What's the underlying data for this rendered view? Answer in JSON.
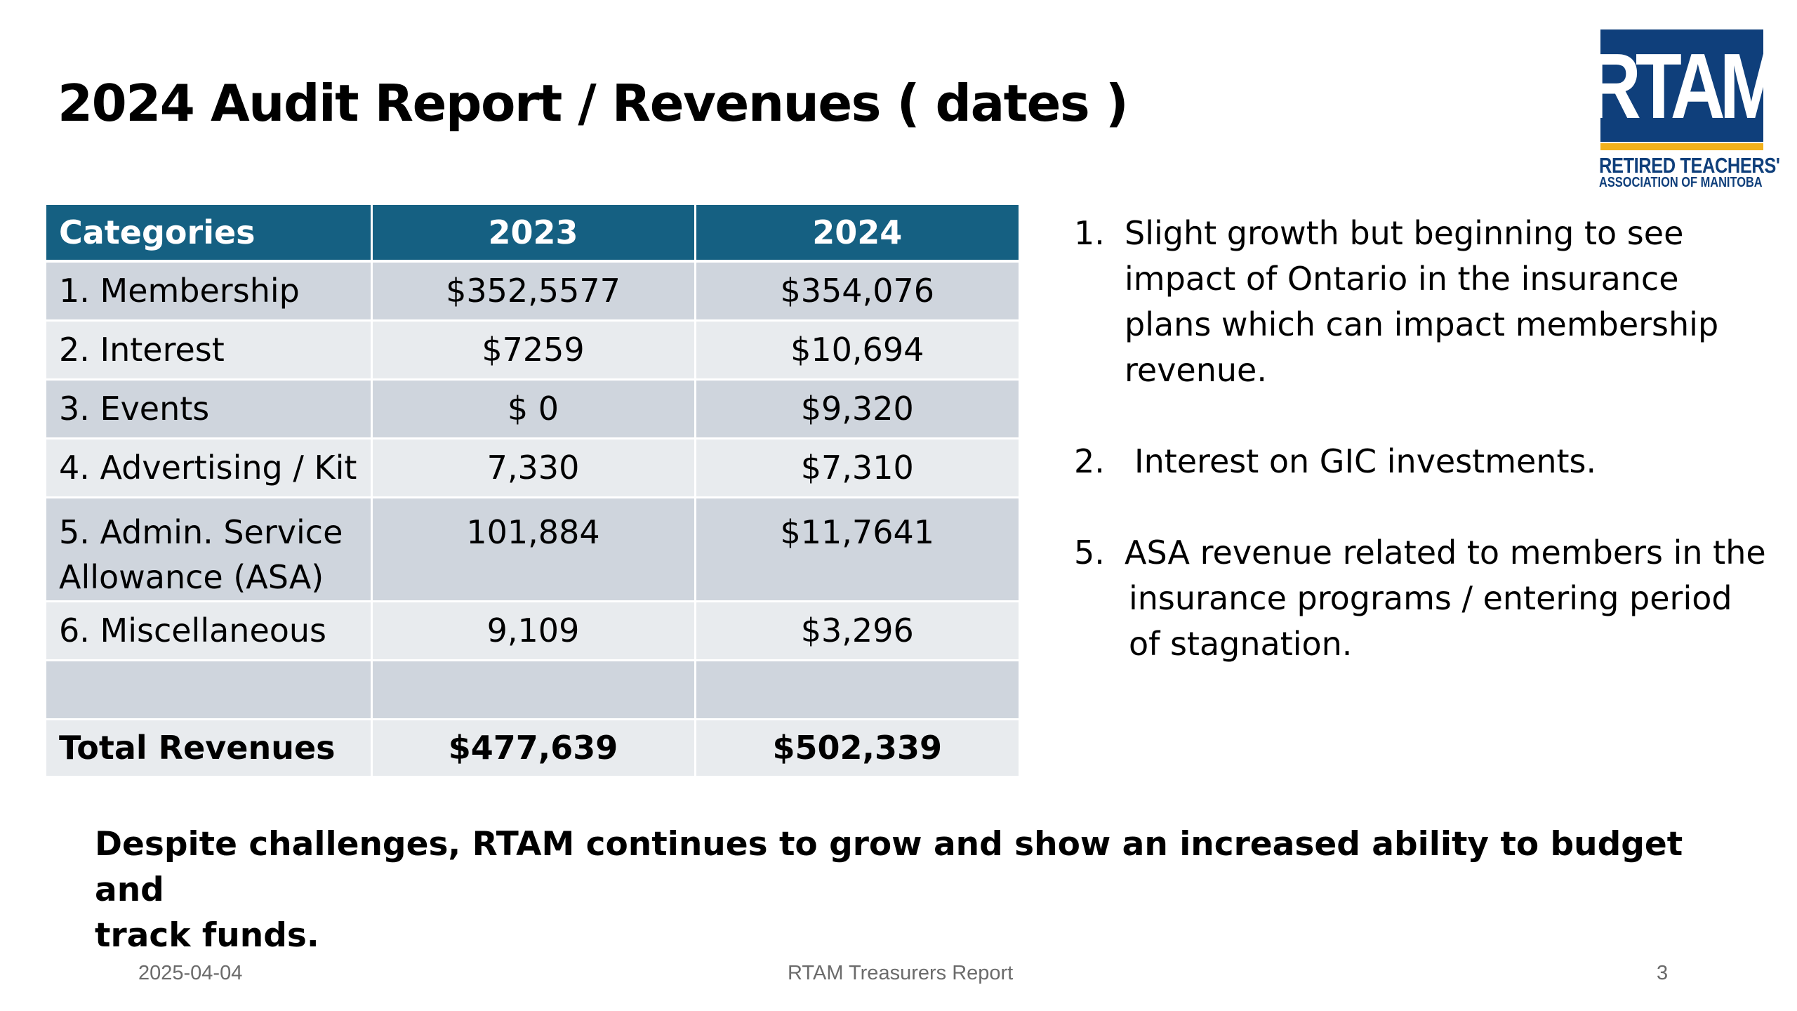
{
  "slide": {
    "title": "2024 Audit Report / Revenues ( dates )"
  },
  "logo": {
    "letters": "RTAM",
    "line1": "RETIRED TEACHERS'",
    "line2": "ASSOCIATION OF MANITOBA",
    "colors": {
      "brand_blue": "#0f3f7b",
      "accent_gold": "#f2b11c"
    }
  },
  "table": {
    "header_color": "#156082",
    "headers": [
      "Categories",
      "2023",
      "2024"
    ],
    "rows": [
      {
        "category": "1. Membership",
        "y2023": "$352,5577",
        "y2024": "$354,076"
      },
      {
        "category": "2. Interest",
        "y2023": "$7259",
        "y2024": "$10,694"
      },
      {
        "category": "3. Events",
        "y2023": "$ 0",
        "y2024": "$9,320"
      },
      {
        "category": "4. Advertising / Kit",
        "y2023": "7,330",
        "y2024": "$7,310"
      },
      {
        "category_line1": "5. Admin. Service",
        "category_line2": "Allowance (ASA)",
        "y2023": "101,884",
        "y2024": "$11,7641"
      },
      {
        "category": "6. Miscellaneous",
        "y2023": "9,109",
        "y2024": "$3,296"
      },
      {
        "category": "",
        "y2023": "",
        "y2024": ""
      }
    ],
    "total": {
      "category": "Total Revenues",
      "y2023": "$477,639",
      "y2024": "$502,339"
    }
  },
  "notes": [
    {
      "num": "1.",
      "lines": [
        "Slight growth but beginning to see",
        "impact of Ontario in the insurance",
        "plans which can impact membership",
        "revenue."
      ]
    },
    {
      "num": "2.",
      "lines": [
        "Interest on GIC investments."
      ]
    },
    {
      "num": "5.",
      "lines": [
        "ASA revenue related to members in the",
        "insurance programs / entering period",
        "of stagnation."
      ]
    }
  ],
  "conclusion": {
    "line1": "Despite challenges, RTAM continues to grow and show an increased ability to budget and",
    "line2": "track funds."
  },
  "footer": {
    "date": "2025-04-04",
    "center": "RTAM Treasurers Report",
    "page": "3"
  }
}
